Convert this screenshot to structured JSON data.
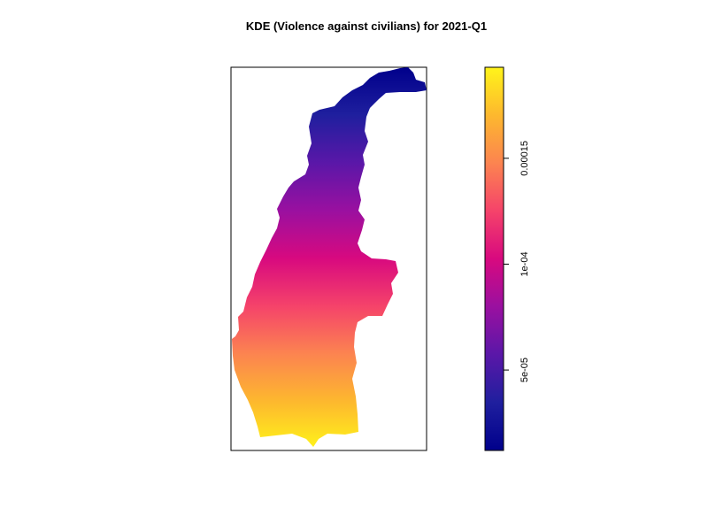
{
  "chart_data": {
    "type": "heatmap",
    "title": "KDE (Violence against civilians) for 2021-Q1",
    "xlabel": "",
    "ylabel": "",
    "legend_position": "right",
    "colorbar": {
      "min": 1.2e-05,
      "max": 0.000193,
      "ticks": [
        {
          "value": 5e-05,
          "label": "5e-05"
        },
        {
          "value": 0.0001,
          "label": "1e-04"
        },
        {
          "value": 0.00015,
          "label": "0.00015"
        }
      ],
      "palette": [
        "#00008B",
        "#1F1F9E",
        "#5A17A8",
        "#9A10A0",
        "#D8097F",
        "#F5436A",
        "#FC8450",
        "#FDB82E",
        "#FFF41A"
      ]
    },
    "density_gradient": "low in north (top), high in south (bottom)"
  }
}
